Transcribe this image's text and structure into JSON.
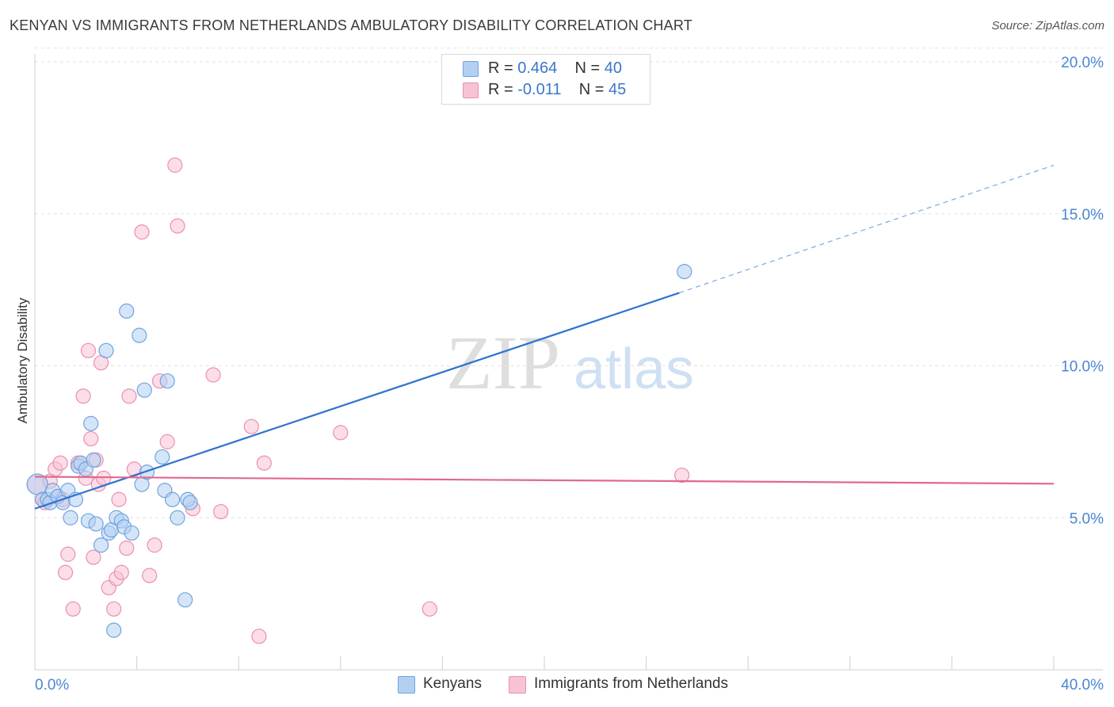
{
  "title": "KENYAN VS IMMIGRANTS FROM NETHERLANDS AMBULATORY DISABILITY CORRELATION CHART",
  "source": "Source: ZipAtlas.com",
  "watermark": {
    "zip": "ZIP",
    "atlas": "atlas"
  },
  "legend": {
    "rows": [
      {
        "r_label": "R = ",
        "r_value": "0.464",
        "n_label": "N = ",
        "n_value": "40",
        "color": "#a9c8f0"
      },
      {
        "r_label": "R = ",
        "r_value": "-0.011",
        "n_label": "N = ",
        "n_value": "45",
        "color": "#f5b8cb"
      }
    ]
  },
  "bottom_legend": [
    "Kenyans",
    "Immigrants from Netherlands"
  ],
  "chart_data": {
    "type": "scatter",
    "title": "KENYAN VS IMMIGRANTS FROM NETHERLANDS AMBULATORY DISABILITY CORRELATION CHART",
    "xlabel": "",
    "ylabel": "Ambulatory Disability",
    "xlim": [
      0,
      40
    ],
    "ylim": [
      0,
      20
    ],
    "x_tick_labels": [
      "0.0%",
      "40.0%"
    ],
    "y_ticks": [
      5,
      10,
      15,
      20
    ],
    "y_tick_labels": [
      "5.0%",
      "10.0%",
      "15.0%",
      "20.0%"
    ],
    "grid": "horizontal dashed",
    "legend_position": "top-center",
    "series": [
      {
        "name": "Kenyans",
        "color": "#6fa3e0",
        "fill": "#b3d0f3",
        "x": [
          0.1,
          0.3,
          0.5,
          0.6,
          0.7,
          0.9,
          1.1,
          1.3,
          1.4,
          1.6,
          1.7,
          1.8,
          2.0,
          2.1,
          2.2,
          2.3,
          2.4,
          2.6,
          2.8,
          2.9,
          3.0,
          3.1,
          3.2,
          3.4,
          3.5,
          3.6,
          3.8,
          4.1,
          4.2,
          4.3,
          4.4,
          5.0,
          5.1,
          5.2,
          5.4,
          5.6,
          5.9,
          6.0,
          6.1,
          25.5
        ],
        "y": [
          6.1,
          5.6,
          5.6,
          5.5,
          5.9,
          5.7,
          5.5,
          5.9,
          5.0,
          5.6,
          6.7,
          6.8,
          6.6,
          4.9,
          8.1,
          6.9,
          4.8,
          4.1,
          10.5,
          4.5,
          4.6,
          1.3,
          5.0,
          4.9,
          4.7,
          11.8,
          4.5,
          11.0,
          6.1,
          9.2,
          6.5,
          7.0,
          5.9,
          9.5,
          5.6,
          5.0,
          2.3,
          5.6,
          5.5,
          13.1
        ],
        "trend": {
          "x": [
            0,
            25.3
          ],
          "y": [
            5.3,
            12.4
          ],
          "extended_x": [
            25.3,
            40
          ],
          "extended_y": [
            12.4,
            16.6
          ]
        }
      },
      {
        "name": "Immigrants from Netherlands",
        "color": "#ec8fae",
        "fill": "#f7c3d4",
        "x": [
          0.1,
          0.3,
          0.4,
          0.6,
          0.8,
          0.9,
          1.0,
          1.1,
          1.2,
          1.3,
          1.5,
          1.7,
          1.9,
          2.0,
          2.1,
          2.2,
          2.3,
          2.4,
          2.5,
          2.6,
          2.7,
          2.9,
          3.1,
          3.2,
          3.3,
          3.4,
          3.6,
          3.7,
          3.9,
          4.2,
          4.5,
          4.7,
          4.9,
          5.2,
          5.5,
          5.6,
          6.2,
          7.0,
          7.3,
          8.5,
          8.8,
          9.0,
          12.0,
          15.5,
          25.4
        ],
        "y": [
          6.1,
          5.6,
          5.5,
          6.2,
          6.6,
          5.7,
          6.8,
          5.6,
          3.2,
          3.8,
          2.0,
          6.8,
          9.0,
          6.3,
          10.5,
          7.6,
          3.7,
          6.9,
          6.1,
          10.1,
          6.3,
          2.7,
          2.0,
          3.0,
          5.6,
          3.2,
          4.0,
          9.0,
          6.6,
          14.4,
          3.1,
          4.1,
          9.5,
          7.5,
          16.6,
          14.6,
          5.3,
          9.7,
          5.2,
          8.0,
          1.1,
          6.8,
          7.8,
          2.0,
          6.4
        ],
        "trend": {
          "x": [
            0,
            40
          ],
          "y": [
            6.35,
            6.12
          ]
        }
      }
    ]
  }
}
